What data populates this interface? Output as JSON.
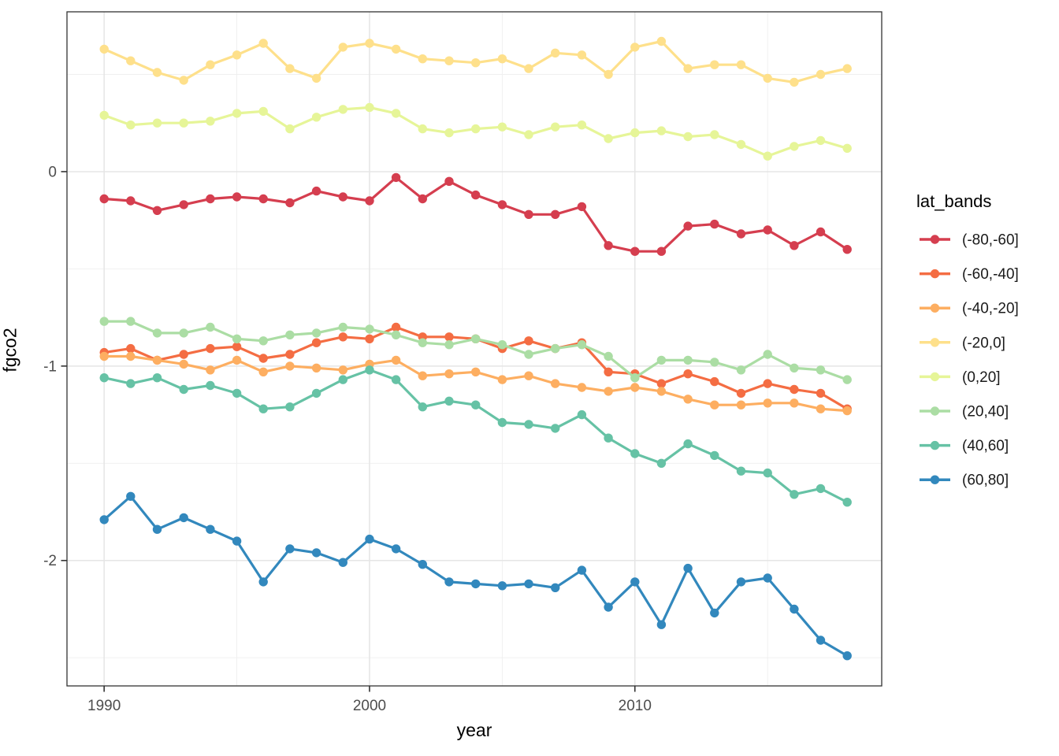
{
  "figure": {
    "background": "#ffffff"
  },
  "chart_data": {
    "type": "line",
    "title": "",
    "xlabel": "year",
    "ylabel": "fgco2",
    "legend_title": "lat_bands",
    "legend_position": "right",
    "grid": "on",
    "marker": "circle",
    "x_domain": [
      1988.6,
      2019.3
    ],
    "y_domain": [
      -2.645,
      0.822
    ],
    "x_ticks": [
      1990,
      2000,
      2010
    ],
    "x_minor_ticks": [
      1995,
      2005,
      2015
    ],
    "y_ticks": [
      0,
      -1,
      -2
    ],
    "y_minor_ticks": [
      0.5,
      -0.5,
      -1.5,
      -2.5
    ],
    "x": [
      1990,
      1991,
      1992,
      1993,
      1994,
      1995,
      1996,
      1997,
      1998,
      1999,
      2000,
      2001,
      2002,
      2003,
      2004,
      2005,
      2006,
      2007,
      2008,
      2009,
      2010,
      2011,
      2012,
      2013,
      2014,
      2015,
      2016,
      2017,
      2018
    ],
    "series": [
      {
        "name": "(-80,-60]",
        "color": "#d53e4f",
        "values": [
          -0.14,
          -0.15,
          -0.2,
          -0.17,
          -0.14,
          -0.13,
          -0.14,
          -0.16,
          -0.1,
          -0.13,
          -0.15,
          -0.03,
          -0.14,
          -0.05,
          -0.12,
          -0.17,
          -0.22,
          -0.22,
          -0.18,
          -0.38,
          -0.41,
          -0.41,
          -0.28,
          -0.27,
          -0.32,
          -0.3,
          -0.38,
          -0.31,
          -0.4
        ]
      },
      {
        "name": "(-60,-40]",
        "color": "#f46d43",
        "values": [
          -0.93,
          -0.91,
          -0.97,
          -0.94,
          -0.91,
          -0.9,
          -0.96,
          -0.94,
          -0.88,
          -0.85,
          -0.86,
          -0.8,
          -0.85,
          -0.85,
          -0.86,
          -0.91,
          -0.87,
          -0.91,
          -0.88,
          -1.03,
          -1.04,
          -1.09,
          -1.04,
          -1.08,
          -1.14,
          -1.09,
          -1.12,
          -1.14,
          -1.22
        ]
      },
      {
        "name": "(-40,-20]",
        "color": "#fdae61",
        "values": [
          -0.95,
          -0.95,
          -0.97,
          -0.99,
          -1.02,
          -0.97,
          -1.03,
          -1.0,
          -1.01,
          -1.02,
          -0.99,
          -0.97,
          -1.05,
          -1.04,
          -1.03,
          -1.07,
          -1.05,
          -1.09,
          -1.11,
          -1.13,
          -1.11,
          -1.13,
          -1.17,
          -1.2,
          -1.2,
          -1.19,
          -1.19,
          -1.22,
          -1.23
        ]
      },
      {
        "name": "(-20,0]",
        "color": "#fee08b",
        "values": [
          0.63,
          0.57,
          0.51,
          0.47,
          0.55,
          0.6,
          0.66,
          0.53,
          0.48,
          0.64,
          0.66,
          0.63,
          0.58,
          0.57,
          0.56,
          0.58,
          0.53,
          0.61,
          0.6,
          0.5,
          0.64,
          0.67,
          0.53,
          0.55,
          0.55,
          0.48,
          0.46,
          0.5,
          0.53
        ]
      },
      {
        "name": "(0,20]",
        "color": "#e6f598",
        "values": [
          0.29,
          0.24,
          0.25,
          0.25,
          0.26,
          0.3,
          0.31,
          0.22,
          0.28,
          0.32,
          0.33,
          0.3,
          0.22,
          0.2,
          0.22,
          0.23,
          0.19,
          0.23,
          0.24,
          0.17,
          0.2,
          0.21,
          0.18,
          0.19,
          0.14,
          0.08,
          0.13,
          0.16,
          0.12
        ]
      },
      {
        "name": "(20,40]",
        "color": "#abdda4",
        "values": [
          -0.77,
          -0.77,
          -0.83,
          -0.83,
          -0.8,
          -0.86,
          -0.87,
          -0.84,
          -0.83,
          -0.8,
          -0.81,
          -0.84,
          -0.88,
          -0.89,
          -0.86,
          -0.89,
          -0.94,
          -0.91,
          -0.89,
          -0.95,
          -1.06,
          -0.97,
          -0.97,
          -0.98,
          -1.02,
          -0.94,
          -1.01,
          -1.02,
          -1.07
        ]
      },
      {
        "name": "(40,60]",
        "color": "#66c2a5",
        "values": [
          -1.06,
          -1.09,
          -1.06,
          -1.12,
          -1.1,
          -1.14,
          -1.22,
          -1.21,
          -1.14,
          -1.07,
          -1.02,
          -1.07,
          -1.21,
          -1.18,
          -1.2,
          -1.29,
          -1.3,
          -1.32,
          -1.25,
          -1.37,
          -1.45,
          -1.5,
          -1.4,
          -1.46,
          -1.54,
          -1.55,
          -1.66,
          -1.63,
          -1.7
        ]
      },
      {
        "name": "(60,80]",
        "color": "#3288bd",
        "values": [
          -1.79,
          -1.67,
          -1.84,
          -1.78,
          -1.84,
          -1.9,
          -2.11,
          -1.94,
          -1.96,
          -2.01,
          -1.89,
          -1.94,
          -2.02,
          -2.11,
          -2.12,
          -2.13,
          -2.12,
          -2.14,
          -2.05,
          -2.24,
          -2.11,
          -2.33,
          -2.04,
          -2.27,
          -2.11,
          -2.09,
          -2.25,
          -2.41,
          -2.49
        ]
      }
    ],
    "theme": {
      "panel_background": "#ffffff",
      "panel_border": "#333333",
      "grid_major": "#e5e5e5",
      "grid_minor": "#efefef",
      "tick_color": "#333333",
      "tick_label_color": "#4d4d4d",
      "axis_title_color": "#000000",
      "legend_text_color": "#1a1a1a"
    }
  }
}
